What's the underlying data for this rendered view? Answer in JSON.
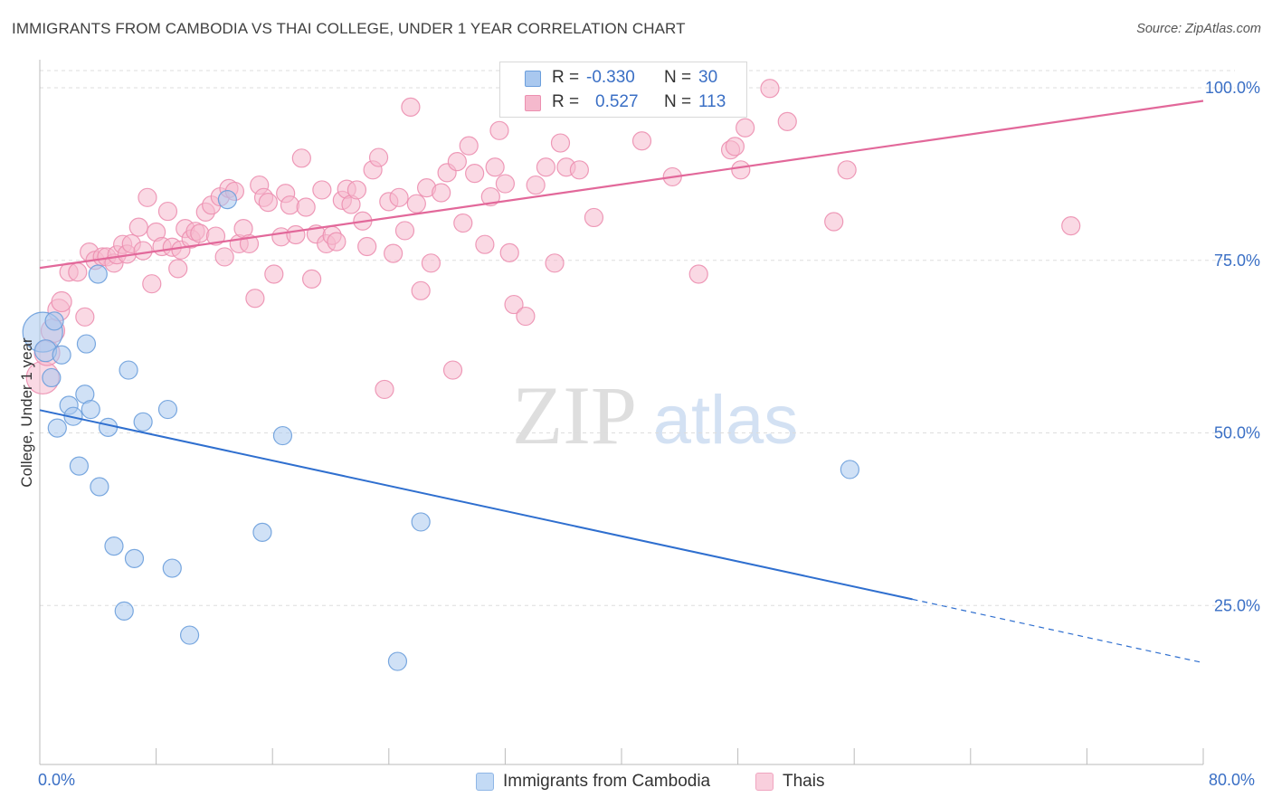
{
  "title": "IMMIGRANTS FROM CAMBODIA VS THAI COLLEGE, UNDER 1 YEAR CORRELATION CHART",
  "source": "Source: ZipAtlas.com",
  "watermark": {
    "zip": "ZIP",
    "atlas": "atlas"
  },
  "legend": {
    "series": [
      {
        "r_label": "R =",
        "r_value": "-0.330",
        "n_label": "N =",
        "n_value": "30"
      },
      {
        "r_label": "R =",
        "r_value": "0.527",
        "n_label": "N =",
        "n_value": "113"
      }
    ]
  },
  "colors": {
    "blue_fill": "#a9c8ef",
    "blue_stroke": "#6b9edc",
    "blue_line": "#2f6fcf",
    "pink_fill": "#f5b9cd",
    "pink_stroke": "#ec8fb0",
    "pink_line": "#e2689a",
    "axis_text": "#3a6fc5",
    "grid": "#dddddd"
  },
  "chart_data": {
    "type": "scatter",
    "title": "IMMIGRANTS FROM CAMBODIA VS THAI COLLEGE, UNDER 1 YEAR CORRELATION CHART",
    "xlabel": "",
    "ylabel": "College, Under 1 year",
    "xlim": [
      0,
      80
    ],
    "ylim": [
      0,
      105
    ],
    "x_tick_labels": [
      "0.0%",
      "80.0%"
    ],
    "y_ticks": [
      25,
      50,
      75,
      100
    ],
    "y_tick_labels": [
      "25.0%",
      "50.0%",
      "75.0%",
      "100.0%"
    ],
    "grid": true,
    "legend_position": "top-center",
    "series": [
      {
        "name": "Immigrants from Cambodia",
        "color": "#6b9edc",
        "r": -0.33,
        "n": 30,
        "trend": {
          "x0": 0,
          "y0": 53.3,
          "x1": 60,
          "y1": 25.9,
          "dashed_to_x": 80,
          "dashed_to_y": 16.7
        },
        "points": [
          [
            0.2,
            64.6,
            22
          ],
          [
            0.4,
            61.9,
            12
          ],
          [
            0.8,
            58.0,
            10
          ],
          [
            1.0,
            66.2,
            10
          ],
          [
            1.2,
            50.7,
            10
          ],
          [
            1.5,
            61.3,
            10
          ],
          [
            2.0,
            54.0,
            10
          ],
          [
            2.3,
            52.4,
            10
          ],
          [
            2.7,
            45.2,
            10
          ],
          [
            3.1,
            55.6,
            10
          ],
          [
            3.2,
            62.9,
            10
          ],
          [
            3.5,
            53.4,
            10
          ],
          [
            4.0,
            73.0,
            10
          ],
          [
            4.1,
            42.2,
            10
          ],
          [
            4.7,
            50.8,
            10
          ],
          [
            5.1,
            33.6,
            10
          ],
          [
            5.8,
            24.2,
            10
          ],
          [
            6.1,
            59.1,
            10
          ],
          [
            6.5,
            31.8,
            10
          ],
          [
            7.1,
            51.6,
            10
          ],
          [
            8.8,
            53.4,
            10
          ],
          [
            9.1,
            30.4,
            10
          ],
          [
            10.3,
            20.7,
            10
          ],
          [
            12.9,
            83.8,
            10
          ],
          [
            15.3,
            35.6,
            10
          ],
          [
            16.7,
            49.6,
            10
          ],
          [
            24.6,
            16.9,
            10
          ],
          [
            26.2,
            37.1,
            10
          ],
          [
            55.7,
            44.7,
            10
          ]
        ]
      },
      {
        "name": "Thais",
        "color": "#ec8fb0",
        "r": 0.527,
        "n": 113,
        "trend": {
          "x0": 0,
          "y0": 73.9,
          "x1": 80,
          "y1": 98.1
        },
        "points": [
          [
            0.2,
            58.0,
            18
          ],
          [
            0.5,
            61.6,
            14
          ],
          [
            0.9,
            64.8,
            13
          ],
          [
            1.3,
            67.8,
            12
          ],
          [
            1.5,
            69.0,
            11
          ],
          [
            2.0,
            73.3,
            10
          ],
          [
            2.6,
            73.3,
            10
          ],
          [
            3.1,
            66.8,
            10
          ],
          [
            3.4,
            76.2,
            10
          ],
          [
            3.8,
            75.0,
            10
          ],
          [
            4.3,
            75.5,
            10
          ],
          [
            4.6,
            75.5,
            10
          ],
          [
            5.1,
            74.6,
            10
          ],
          [
            5.3,
            75.8,
            10
          ],
          [
            5.7,
            77.3,
            10
          ],
          [
            6.0,
            75.9,
            10
          ],
          [
            6.3,
            77.4,
            10
          ],
          [
            6.8,
            79.8,
            10
          ],
          [
            7.1,
            76.4,
            10
          ],
          [
            7.4,
            84.1,
            10
          ],
          [
            7.7,
            71.6,
            10
          ],
          [
            8.0,
            79.1,
            10
          ],
          [
            8.4,
            77.0,
            10
          ],
          [
            8.8,
            82.1,
            10
          ],
          [
            9.1,
            76.9,
            10
          ],
          [
            9.5,
            73.8,
            10
          ],
          [
            9.7,
            76.5,
            10
          ],
          [
            10.0,
            79.6,
            10
          ],
          [
            10.4,
            78.1,
            10
          ],
          [
            10.7,
            79.2,
            10
          ],
          [
            11.0,
            78.9,
            10
          ],
          [
            11.4,
            82.0,
            10
          ],
          [
            11.8,
            83.0,
            10
          ],
          [
            12.1,
            78.5,
            10
          ],
          [
            12.4,
            84.2,
            10
          ],
          [
            12.7,
            75.5,
            10
          ],
          [
            13.0,
            85.4,
            10
          ],
          [
            13.4,
            85.0,
            10
          ],
          [
            13.7,
            77.4,
            10
          ],
          [
            14.0,
            79.6,
            10
          ],
          [
            14.4,
            77.4,
            10
          ],
          [
            14.8,
            69.5,
            10
          ],
          [
            15.1,
            85.9,
            10
          ],
          [
            15.4,
            84.1,
            10
          ],
          [
            15.7,
            83.4,
            10
          ],
          [
            16.1,
            73.0,
            10
          ],
          [
            16.6,
            78.4,
            10
          ],
          [
            16.9,
            84.7,
            10
          ],
          [
            17.2,
            83.0,
            10
          ],
          [
            17.6,
            78.7,
            10
          ],
          [
            18.0,
            89.8,
            10
          ],
          [
            18.3,
            82.7,
            10
          ],
          [
            18.7,
            72.3,
            10
          ],
          [
            19.0,
            78.8,
            10
          ],
          [
            19.4,
            85.2,
            10
          ],
          [
            19.7,
            77.4,
            10
          ],
          [
            20.1,
            78.6,
            10
          ],
          [
            20.4,
            77.7,
            10
          ],
          [
            20.8,
            83.7,
            10
          ],
          [
            21.1,
            85.3,
            10
          ],
          [
            21.4,
            83.1,
            10
          ],
          [
            21.8,
            85.2,
            10
          ],
          [
            22.2,
            80.7,
            10
          ],
          [
            22.5,
            77.0,
            10
          ],
          [
            22.9,
            88.1,
            10
          ],
          [
            23.3,
            89.9,
            10
          ],
          [
            23.7,
            56.3,
            10
          ],
          [
            24.0,
            83.5,
            10
          ],
          [
            24.3,
            76.0,
            10
          ],
          [
            24.7,
            84.1,
            10
          ],
          [
            25.1,
            79.3,
            10
          ],
          [
            25.5,
            97.2,
            10
          ],
          [
            25.9,
            83.2,
            10
          ],
          [
            26.2,
            70.6,
            10
          ],
          [
            26.6,
            85.5,
            10
          ],
          [
            26.9,
            74.6,
            10
          ],
          [
            27.6,
            84.8,
            10
          ],
          [
            28.0,
            87.7,
            10
          ],
          [
            28.4,
            59.1,
            10
          ],
          [
            28.7,
            89.3,
            10
          ],
          [
            29.1,
            80.4,
            10
          ],
          [
            29.5,
            91.6,
            10
          ],
          [
            29.9,
            87.6,
            10
          ],
          [
            30.6,
            77.3,
            10
          ],
          [
            31.0,
            84.2,
            10
          ],
          [
            31.3,
            88.5,
            10
          ],
          [
            31.6,
            93.8,
            10
          ],
          [
            32.0,
            86.1,
            10
          ],
          [
            32.3,
            76.1,
            10
          ],
          [
            32.6,
            68.6,
            10
          ],
          [
            33.4,
            66.9,
            10
          ],
          [
            34.1,
            85.9,
            10
          ],
          [
            34.8,
            88.5,
            10
          ],
          [
            35.4,
            74.6,
            10
          ],
          [
            35.8,
            92.0,
            10
          ],
          [
            36.2,
            88.5,
            10
          ],
          [
            37.1,
            88.1,
            10
          ],
          [
            38.1,
            81.2,
            10
          ],
          [
            41.4,
            92.3,
            10
          ],
          [
            43.5,
            87.1,
            10
          ],
          [
            45.3,
            73.0,
            10
          ],
          [
            47.5,
            91.0,
            10
          ],
          [
            47.8,
            91.5,
            10
          ],
          [
            48.2,
            88.1,
            10
          ],
          [
            48.5,
            94.2,
            10
          ],
          [
            50.2,
            99.9,
            10
          ],
          [
            51.4,
            95.1,
            10
          ],
          [
            54.6,
            80.6,
            10
          ],
          [
            55.5,
            88.1,
            10
          ],
          [
            70.9,
            80.0,
            10
          ]
        ]
      }
    ]
  }
}
